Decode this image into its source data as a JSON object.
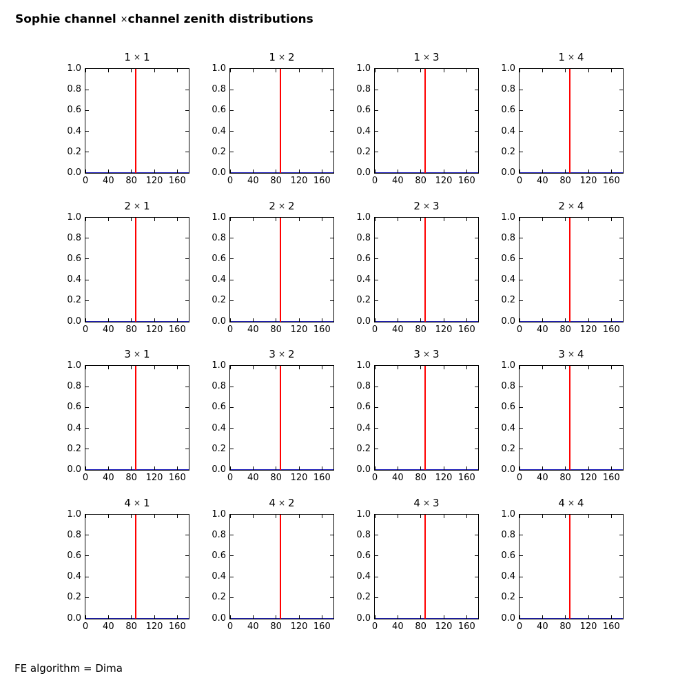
{
  "figure": {
    "title_prefix": "Sophie channel ",
    "title_times": "×",
    "title_suffix": "channel zenith distributions",
    "footer": "FE algorithm = Dima"
  },
  "axes": {
    "x_tick_labels": [
      "0",
      "40",
      "80",
      "120",
      "160"
    ],
    "x_tick_values": [
      0,
      40,
      80,
      120,
      160
    ],
    "xlim": [
      0,
      180
    ],
    "y_tick_labels": [
      "0.0",
      "0.2",
      "0.4",
      "0.6",
      "0.8",
      "1.0"
    ],
    "y_tick_values": [
      0,
      0.2,
      0.4,
      0.6,
      0.8,
      1.0
    ],
    "ylim": [
      0,
      1
    ]
  },
  "marker": {
    "vline_x": 87.5,
    "color": "#ff0000"
  },
  "baseline": {
    "y": 0,
    "color": "#2222bb"
  },
  "subplots": [
    {
      "row": "1",
      "times": "×",
      "col": "1"
    },
    {
      "row": "1",
      "times": "×",
      "col": "2"
    },
    {
      "row": "1",
      "times": "×",
      "col": "3"
    },
    {
      "row": "1",
      "times": "×",
      "col": "4"
    },
    {
      "row": "2",
      "times": "×",
      "col": "1"
    },
    {
      "row": "2",
      "times": "×",
      "col": "2"
    },
    {
      "row": "2",
      "times": "×",
      "col": "3"
    },
    {
      "row": "2",
      "times": "×",
      "col": "4"
    },
    {
      "row": "3",
      "times": "×",
      "col": "1"
    },
    {
      "row": "3",
      "times": "×",
      "col": "2"
    },
    {
      "row": "3",
      "times": "×",
      "col": "3"
    },
    {
      "row": "3",
      "times": "×",
      "col": "4"
    },
    {
      "row": "4",
      "times": "×",
      "col": "1"
    },
    {
      "row": "4",
      "times": "×",
      "col": "2"
    },
    {
      "row": "4",
      "times": "×",
      "col": "3"
    },
    {
      "row": "4",
      "times": "×",
      "col": "4"
    }
  ],
  "chart_data": {
    "type": "line",
    "title": "Sophie channel ×channel zenith distributions",
    "annotation": "FE algorithm = Dima",
    "grid_layout": {
      "rows": 4,
      "cols": 4
    },
    "shared_axes": {
      "xlim": [
        0,
        180
      ],
      "ylim": [
        0,
        1
      ],
      "x_ticks": [
        0,
        40,
        80,
        120,
        160
      ],
      "y_ticks": [
        0,
        0.2,
        0.4,
        0.6,
        0.8,
        1.0
      ],
      "grid": false,
      "legend": "none",
      "tick_direction": "in",
      "ticks_on_all_sides": true
    },
    "subplots": [
      {
        "title": "1 × 1",
        "row": 1,
        "col": 1,
        "red_vline_x": 87.5,
        "flat_blue_line_y": 0.0
      },
      {
        "title": "1 × 2",
        "row": 1,
        "col": 2,
        "red_vline_x": 87.5,
        "flat_blue_line_y": 0.0
      },
      {
        "title": "1 × 3",
        "row": 1,
        "col": 3,
        "red_vline_x": 87.5,
        "flat_blue_line_y": 0.0
      },
      {
        "title": "1 × 4",
        "row": 1,
        "col": 4,
        "red_vline_x": 87.5,
        "flat_blue_line_y": 0.0
      },
      {
        "title": "2 × 1",
        "row": 2,
        "col": 1,
        "red_vline_x": 87.5,
        "flat_blue_line_y": 0.0
      },
      {
        "title": "2 × 2",
        "row": 2,
        "col": 2,
        "red_vline_x": 87.5,
        "flat_blue_line_y": 0.0
      },
      {
        "title": "2 × 3",
        "row": 2,
        "col": 3,
        "red_vline_x": 87.5,
        "flat_blue_line_y": 0.0
      },
      {
        "title": "2 × 4",
        "row": 2,
        "col": 4,
        "red_vline_x": 87.5,
        "flat_blue_line_y": 0.0
      },
      {
        "title": "3 × 1",
        "row": 3,
        "col": 1,
        "red_vline_x": 87.5,
        "flat_blue_line_y": 0.0
      },
      {
        "title": "3 × 2",
        "row": 3,
        "col": 2,
        "red_vline_x": 87.5,
        "flat_blue_line_y": 0.0
      },
      {
        "title": "3 × 3",
        "row": 3,
        "col": 3,
        "red_vline_x": 87.5,
        "flat_blue_line_y": 0.0
      },
      {
        "title": "3 × 4",
        "row": 3,
        "col": 4,
        "red_vline_x": 87.5,
        "flat_blue_line_y": 0.0
      },
      {
        "title": "4 × 1",
        "row": 4,
        "col": 1,
        "red_vline_x": 87.5,
        "flat_blue_line_y": 0.0
      },
      {
        "title": "4 × 2",
        "row": 4,
        "col": 2,
        "red_vline_x": 87.5,
        "flat_blue_line_y": 0.0
      },
      {
        "title": "4 × 3",
        "row": 4,
        "col": 3,
        "red_vline_x": 87.5,
        "flat_blue_line_y": 0.0
      },
      {
        "title": "4 × 4",
        "row": 4,
        "col": 4,
        "red_vline_x": 87.5,
        "flat_blue_line_y": 0.0
      }
    ]
  }
}
